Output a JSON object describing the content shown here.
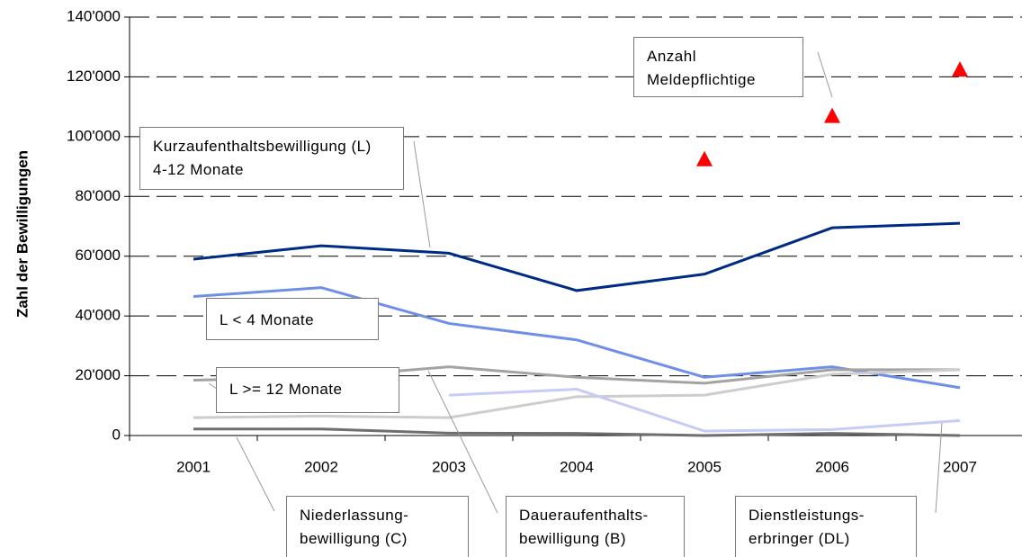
{
  "chart_data": {
    "type": "line",
    "y_label": "Zahl der Bewilligungen",
    "categories": [
      "2001",
      "2002",
      "2003",
      "2004",
      "2005",
      "2006",
      "2007"
    ],
    "ylim": [
      0,
      140000
    ],
    "yticks": [
      0,
      {
        "value": 20000,
        "label": "20'000"
      },
      {
        "value": 40000,
        "label": "40'000"
      },
      {
        "value": 60000,
        "label": "60'000"
      },
      {
        "value": 80000,
        "label": "80'000"
      },
      {
        "value": 100000,
        "label": "100'000"
      },
      {
        "value": 120000,
        "label": "120'000"
      },
      {
        "value": 140000,
        "label": "140'000"
      }
    ],
    "grid": true,
    "series": [
      {
        "name": "Kurzaufenthaltsbewilligung (L) 4-12 Monate",
        "color": "#002b84",
        "values": [
          59000,
          63500,
          61000,
          48500,
          54000,
          69500,
          71000
        ]
      },
      {
        "name": "L < 4 Monate",
        "color": "#6f8ee8",
        "values": [
          46500,
          49500,
          37500,
          32000,
          19500,
          23000,
          16000
        ]
      },
      {
        "name": "L >= 12 Monate",
        "color": "#a3a3a3",
        "values": [
          18500,
          19500,
          23000,
          19500,
          17500,
          22000,
          22000
        ]
      },
      {
        "name": "Daueraufenthalts-bewilligung (B)",
        "color": "#cdcdcd",
        "values": [
          6000,
          6500,
          6000,
          13000,
          13500,
          20500,
          22000
        ]
      },
      {
        "name": "Dienstleistungs-erbringer (DL)",
        "color": "#c5cdf6",
        "values": [
          null,
          null,
          13500,
          15500,
          1500,
          2000,
          5000
        ]
      },
      {
        "name": "Niederlassung-bewilligung (C)",
        "color": "#6e6e6e",
        "values": [
          2200,
          2200,
          800,
          700,
          0,
          700,
          0
        ]
      },
      {
        "name": "Anzahl Meldepflichtige",
        "color": "#ff0000",
        "marker": "triangle",
        "values": [
          null,
          null,
          null,
          null,
          92500,
          107000,
          122500
        ]
      }
    ]
  }
}
